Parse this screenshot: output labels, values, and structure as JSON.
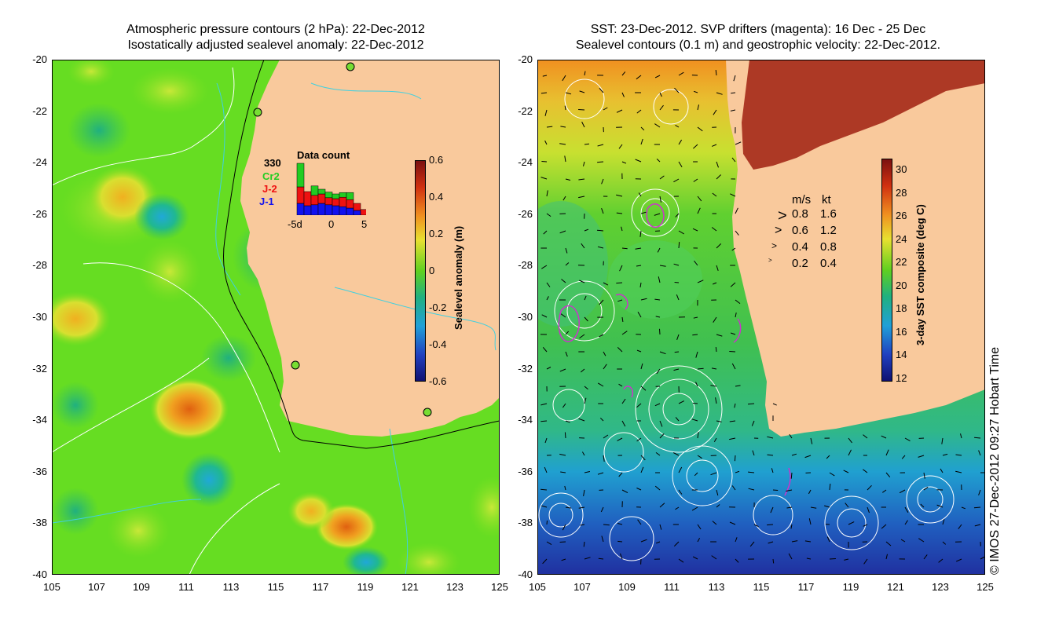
{
  "left_panel": {
    "title_line1": "Atmospheric pressure contours (2 hPa): 22-Dec-2012",
    "title_line2": "Isostatically adjusted sealevel anomaly: 22-Dec-2012",
    "colorbar_label": "Sealevel anomaly (m)",
    "colorbar_ticks": [
      "0.6",
      "0.4",
      "0.2",
      "0",
      "-0.2",
      "-0.4",
      "-0.6"
    ],
    "data_count": {
      "title": "Data count",
      "max_label": "330",
      "sat_labels": [
        "Cr2",
        "J-2",
        "J-1"
      ],
      "sat_colors": [
        "#22cc22",
        "#ee1111",
        "#1111ee"
      ],
      "axis_labels": [
        "-5d",
        "0",
        "5"
      ],
      "bars": [
        {
          "j1": 25,
          "j2": 35,
          "cr2": 50
        },
        {
          "j1": 20,
          "j2": 30,
          "cr2": 0
        },
        {
          "j1": 22,
          "j2": 20,
          "cr2": 20
        },
        {
          "j1": 25,
          "j2": 20,
          "cr2": 10
        },
        {
          "j1": 22,
          "j2": 15,
          "cr2": 12
        },
        {
          "j1": 20,
          "j2": 15,
          "cr2": 10
        },
        {
          "j1": 18,
          "j2": 20,
          "cr2": 10
        },
        {
          "j1": 15,
          "j2": 18,
          "cr2": 15
        },
        {
          "j1": 10,
          "j2": 15,
          "cr2": 0
        },
        {
          "j1": 0,
          "j2": 12,
          "cr2": 0
        }
      ]
    }
  },
  "right_panel": {
    "title_line1": "SST: 23-Dec-2012. SVP drifters (magenta): 16 Dec - 25 Dec",
    "title_line2": "Sealevel contours (0.1 m) and geostrophic velocity: 22-Dec-2012.",
    "colorbar_label": "3-day SST composite (deg C)",
    "colorbar_ticks": [
      "30",
      "28",
      "26",
      "24",
      "22",
      "20",
      "18",
      "16",
      "14",
      "12"
    ],
    "velocity_legend": {
      "header_ms": "m/s",
      "header_kt": "kt",
      "rows": [
        {
          "ms": "0.8",
          "kt": "1.6"
        },
        {
          "ms": "0.6",
          "kt": "1.2"
        },
        {
          "ms": "0.4",
          "kt": "0.8"
        },
        {
          "ms": "0.2",
          "kt": "0.4"
        }
      ]
    }
  },
  "axes": {
    "lat_ticks": [
      "-20",
      "-22",
      "-24",
      "-26",
      "-28",
      "-30",
      "-32",
      "-34",
      "-36",
      "-38",
      "-40"
    ],
    "lon_ticks": [
      "105",
      "107",
      "109",
      "111",
      "113",
      "115",
      "117",
      "119",
      "121",
      "123",
      "125"
    ]
  },
  "credit": "© IMOS 27-Dec-2012 09:27 Hobart Time",
  "colors": {
    "land": "#f9c99c",
    "ssh_bg": "#55dd22",
    "sst_bg": "#55cc33"
  }
}
